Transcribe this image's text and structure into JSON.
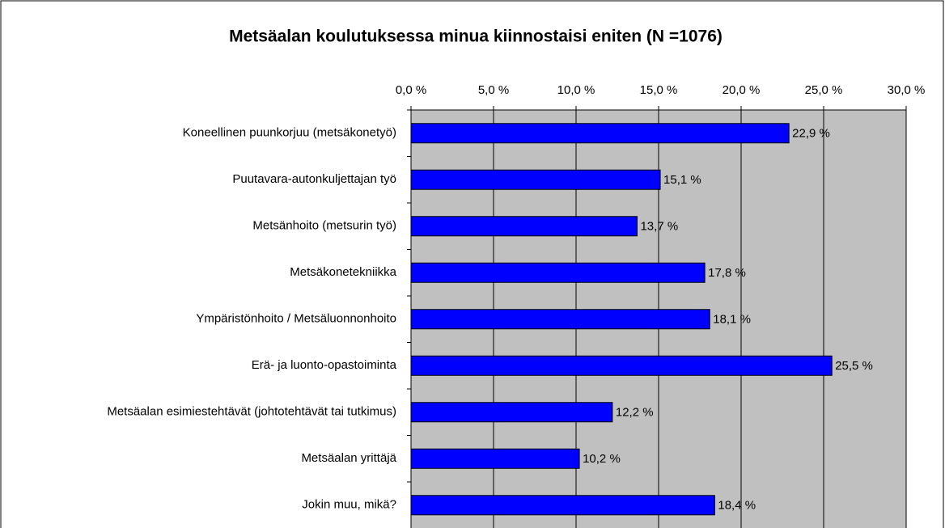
{
  "chart_data": {
    "type": "barh",
    "title": "Metsäalan koulutuksessa minua kiinnostaisi eniten (N =1076)",
    "categories": [
      "Koneellinen puunkorjuu (metsäkonetyö)",
      "Puutavara-autonkuljettajan työ",
      "Metsänhoito (metsurin työ)",
      "Metsäkonetekniikka",
      "Ympäristönhoito / Metsäluonnonhoito",
      "Erä- ja luonto-opastoiminta",
      "Metsäalan esimiestehtävät (johtotehtävät tai tutkimus)",
      "Metsäalan yrittäjä",
      "Jokin muu, mikä?"
    ],
    "values": [
      22.9,
      15.1,
      13.7,
      17.8,
      18.1,
      25.5,
      12.2,
      10.2,
      18.4
    ],
    "value_labels": [
      "22,9 %",
      "15,1 %",
      "13,7 %",
      "17,8 %",
      "18,1 %",
      "25,5 %",
      "12,2 %",
      "10,2 %",
      "18,4 %"
    ],
    "color": "#0000ff",
    "xlim": [
      0,
      30
    ],
    "xticks": [
      {
        "value": 0,
        "label": "0,0 %"
      },
      {
        "value": 5,
        "label": "5,0 %"
      },
      {
        "value": 10,
        "label": "10,0 %"
      },
      {
        "value": 15,
        "label": "15,0 %"
      },
      {
        "value": 20,
        "label": "20,0 %"
      },
      {
        "value": 25,
        "label": "25,0 %"
      },
      {
        "value": 30,
        "label": "30,0 %"
      }
    ],
    "grid": true
  }
}
